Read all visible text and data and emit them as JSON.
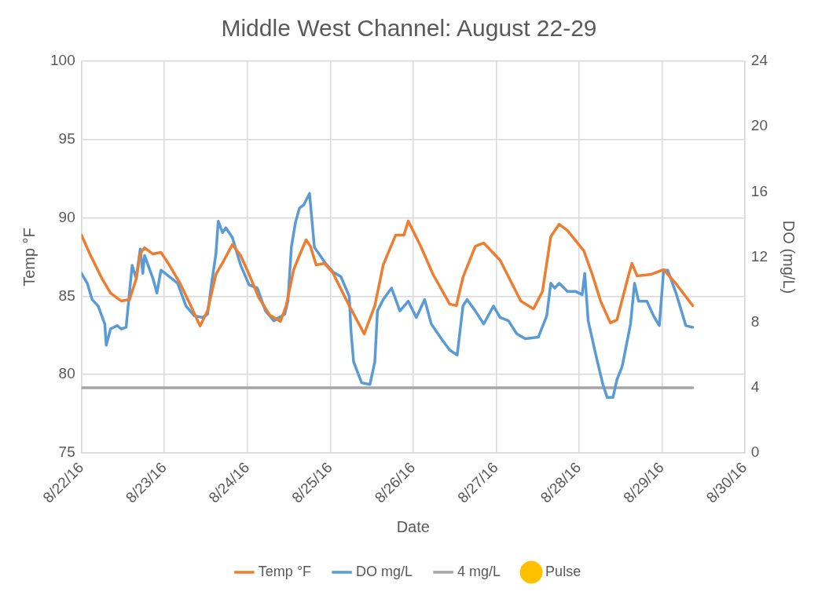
{
  "chart_data": {
    "type": "line",
    "title": "Middle West Channel: August 22-29",
    "xlabel": "Date",
    "ylabel": "Temp °F",
    "y2label": "DO (mg/L)",
    "xlim": [
      "--08-22",
      "--08-30"
    ],
    "xticks": [
      {
        "value": "--08-22",
        "label": "8/22/16"
      },
      {
        "value": "--08-23",
        "label": "8/23/16"
      },
      {
        "value": "--08-24",
        "label": "8/24/16"
      },
      {
        "value": "--08-25",
        "label": "8/25/16"
      },
      {
        "value": "--08-26",
        "label": "8/26/16"
      },
      {
        "value": "--08-27",
        "label": "8/27/16"
      },
      {
        "value": "--08-28",
        "label": "8/28/16"
      },
      {
        "value": "--08-29",
        "label": "8/29/16"
      },
      {
        "value": "--08-30",
        "label": "8/30/16"
      }
    ],
    "ylim": [
      75,
      100
    ],
    "yticks": [
      75,
      80,
      85,
      90,
      95,
      100
    ],
    "y2lim": [
      0,
      24
    ],
    "y2ticks": [
      0,
      4,
      8,
      12,
      16,
      20,
      24
    ],
    "grid": true,
    "legend": "bottom",
    "marker": "none",
    "line_style": "solid",
    "series": [
      {
        "name": "Temp °F",
        "color": "#ed7d31",
        "x": [
          "--08-22T00:00",
          "--08-22T02:25",
          "--08-22T06:00",
          "--08-22T08:25",
          "--08-22T10:50",
          "--08-22T11:30",
          "--08-22T13:55",
          "--08-22T15:50",
          "--08-22T17:00",
          "--08-22T18:15",
          "--08-22T20:40",
          "--08-22T23:00",
          "--08-23T01:25",
          "--08-23T04:35",
          "--08-23T07:25",
          "--08-23T10:20",
          "--08-23T12:30",
          "--08-23T14:55",
          "--08-23T17:15",
          "--08-23T19:40",
          "--08-23T22:05",
          "--08-24T00:30",
          "--08-24T03:20",
          "--08-24T06:30",
          "--08-24T09:35",
          "--08-24T11:15",
          "--08-24T13:25",
          "--08-24T15:05",
          "--08-24T17:00",
          "--08-24T18:15",
          "--08-24T19:55",
          "--08-24T22:20",
          "--08-25T00:45",
          "--08-25T05:30",
          "--08-25T09:50",
          "--08-25T12:55",
          "--08-25T15:20",
          "--08-25T18:55",
          "--08-25T21:20",
          "--08-25T22:35",
          "--08-26T02:10",
          "--08-26T05:45",
          "--08-26T10:35",
          "--08-26T12:30",
          "--08-26T14:25",
          "--08-26T18:00",
          "--08-26T20:25",
          "--08-27T01:10",
          "--08-27T07:10",
          "--08-27T10:50",
          "--08-27T13:25",
          "--08-27T15:50",
          "--08-27T18:15",
          "--08-27T20:40",
          "--08-28T01:25",
          "--08-28T03:50",
          "--08-28T06:15",
          "--08-28T09:05",
          "--08-28T11:00",
          "--08-28T14:25",
          "--08-28T15:20",
          "--08-28T16:50",
          "--08-28T20:55",
          "--08-29T00:30",
          "--08-29T04:05",
          "--08-29T08:55"
        ],
        "values": [
          88.9,
          87.7,
          86.1,
          85.2,
          84.8,
          84.7,
          84.8,
          86.1,
          87.7,
          88.1,
          87.7,
          87.8,
          87.0,
          85.8,
          84.5,
          83.1,
          84.1,
          86.4,
          87.3,
          88.3,
          87.6,
          86.4,
          84.9,
          83.8,
          83.4,
          84.4,
          86.7,
          87.6,
          88.6,
          88.2,
          87.0,
          87.1,
          86.5,
          84.4,
          82.6,
          84.4,
          87.0,
          88.9,
          88.9,
          89.8,
          88.2,
          86.4,
          84.5,
          84.4,
          86.2,
          88.2,
          88.4,
          87.3,
          84.7,
          84.2,
          85.3,
          88.8,
          89.6,
          89.2,
          87.9,
          86.4,
          84.7,
          83.3,
          83.5,
          86.4,
          87.1,
          86.3,
          86.4,
          86.7,
          85.8,
          84.4
        ]
      },
      {
        "name": "DO mg/L",
        "color": "#5b9bd5",
        "axis": "y2",
        "x": [
          "--08-22T00:00",
          "--08-22T01:40",
          "--08-22T03:05",
          "--08-22T04:50",
          "--08-22T06:45",
          "--08-22T07:10",
          "--08-22T08:25",
          "--08-22T10:20",
          "--08-22T11:30",
          "--08-22T12:55",
          "--08-22T14:40",
          "--08-22T15:50",
          "--08-22T17:00",
          "--08-22T17:45",
          "--08-22T18:15",
          "--08-22T20:40",
          "--08-22T21:50",
          "--08-22T23:00",
          "--08-23T01:25",
          "--08-23T03:50",
          "--08-23T06:15",
          "--08-23T08:40",
          "--08-23T11:00",
          "--08-23T12:30",
          "--08-23T13:40",
          "--08-23T14:55",
          "--08-23T15:35",
          "--08-23T16:50",
          "--08-23T17:45",
          "--08-23T19:40",
          "--08-23T22:05",
          "--08-24T00:30",
          "--08-24T02:55",
          "--08-24T05:15",
          "--08-24T07:40",
          "--08-24T10:50",
          "--08-24T11:45",
          "--08-24T12:45",
          "--08-24T13:55",
          "--08-24T15:05",
          "--08-24T16:20",
          "--08-24T18:00",
          "--08-24T19:25",
          "--08-24T21:05",
          "--08-24T22:20",
          "--08-25T00:45",
          "--08-25T03:05",
          "--08-25T05:30",
          "--08-25T06:00",
          "--08-25T06:45",
          "--08-25T09:05",
          "--08-25T11:30",
          "--08-25T12:55",
          "--08-25T13:40",
          "--08-25T15:20",
          "--08-25T17:45",
          "--08-25T20:10",
          "--08-25T22:35",
          "--08-26T00:55",
          "--08-26T03:20",
          "--08-26T05:15",
          "--08-26T08:10",
          "--08-26T10:35",
          "--08-26T12:45",
          "--08-26T14:25",
          "--08-26T15:35",
          "--08-26T18:00",
          "--08-26T20:25",
          "--08-26T23:15",
          "--08-27T01:10",
          "--08-27T03:35",
          "--08-27T06:00",
          "--08-27T08:25",
          "--08-27T12:15",
          "--08-27T14:40",
          "--08-27T15:50",
          "--08-27T17:00",
          "--08-27T18:15",
          "--08-27T20:40",
          "--08-27T23:00",
          "--08-28T00:55",
          "--08-28T01:40",
          "--08-28T02:40",
          "--08-28T05:00",
          "--08-28T06:55",
          "--08-28T08:10",
          "--08-28T09:50",
          "--08-28T11:00",
          "--08-28T12:30",
          "--08-28T14:55",
          "--08-28T16:05",
          "--08-28T17:15",
          "--08-28T19:40",
          "--08-28T21:35",
          "--08-28T23:15",
          "--08-29T00:30",
          "--08-29T01:40",
          "--08-29T04:05",
          "--08-29T06:55",
          "--08-29T08:55"
        ],
        "values": [
          11.0,
          10.4,
          9.4,
          9.0,
          7.9,
          6.6,
          7.6,
          7.8,
          7.6,
          7.7,
          11.5,
          10.7,
          12.5,
          11.0,
          12.1,
          10.7,
          9.8,
          11.2,
          10.8,
          10.4,
          9.0,
          8.4,
          8.3,
          8.5,
          10.4,
          12.2,
          14.2,
          13.5,
          13.8,
          13.2,
          11.5,
          10.3,
          10.1,
          8.7,
          8.1,
          8.5,
          9.3,
          12.6,
          14.1,
          15.0,
          15.2,
          15.9,
          12.6,
          12.1,
          11.7,
          11.1,
          10.8,
          9.6,
          7.5,
          5.6,
          4.3,
          4.2,
          5.6,
          8.7,
          9.4,
          10.1,
          8.7,
          9.3,
          8.3,
          9.4,
          7.9,
          7.0,
          6.3,
          6.0,
          9.0,
          9.4,
          8.7,
          7.9,
          9.0,
          8.3,
          8.1,
          7.3,
          7.0,
          7.1,
          8.4,
          10.4,
          10.1,
          10.4,
          9.9,
          9.9,
          9.7,
          11.0,
          8.1,
          5.9,
          4.2,
          3.4,
          3.4,
          4.5,
          5.3,
          7.9,
          10.4,
          9.3,
          9.3,
          8.4,
          7.8,
          11.2,
          11.2,
          9.8,
          7.8,
          7.7
        ]
      },
      {
        "name": "4 mg/L",
        "color": "#a5a5a5",
        "axis": "y2",
        "x": [
          "--08-22T00:00",
          "--08-29T08:55"
        ],
        "values": [
          4,
          4
        ]
      },
      {
        "name": "Pulse",
        "type": "scatter",
        "color": "#ffc000",
        "marker": "circle"
      }
    ]
  }
}
